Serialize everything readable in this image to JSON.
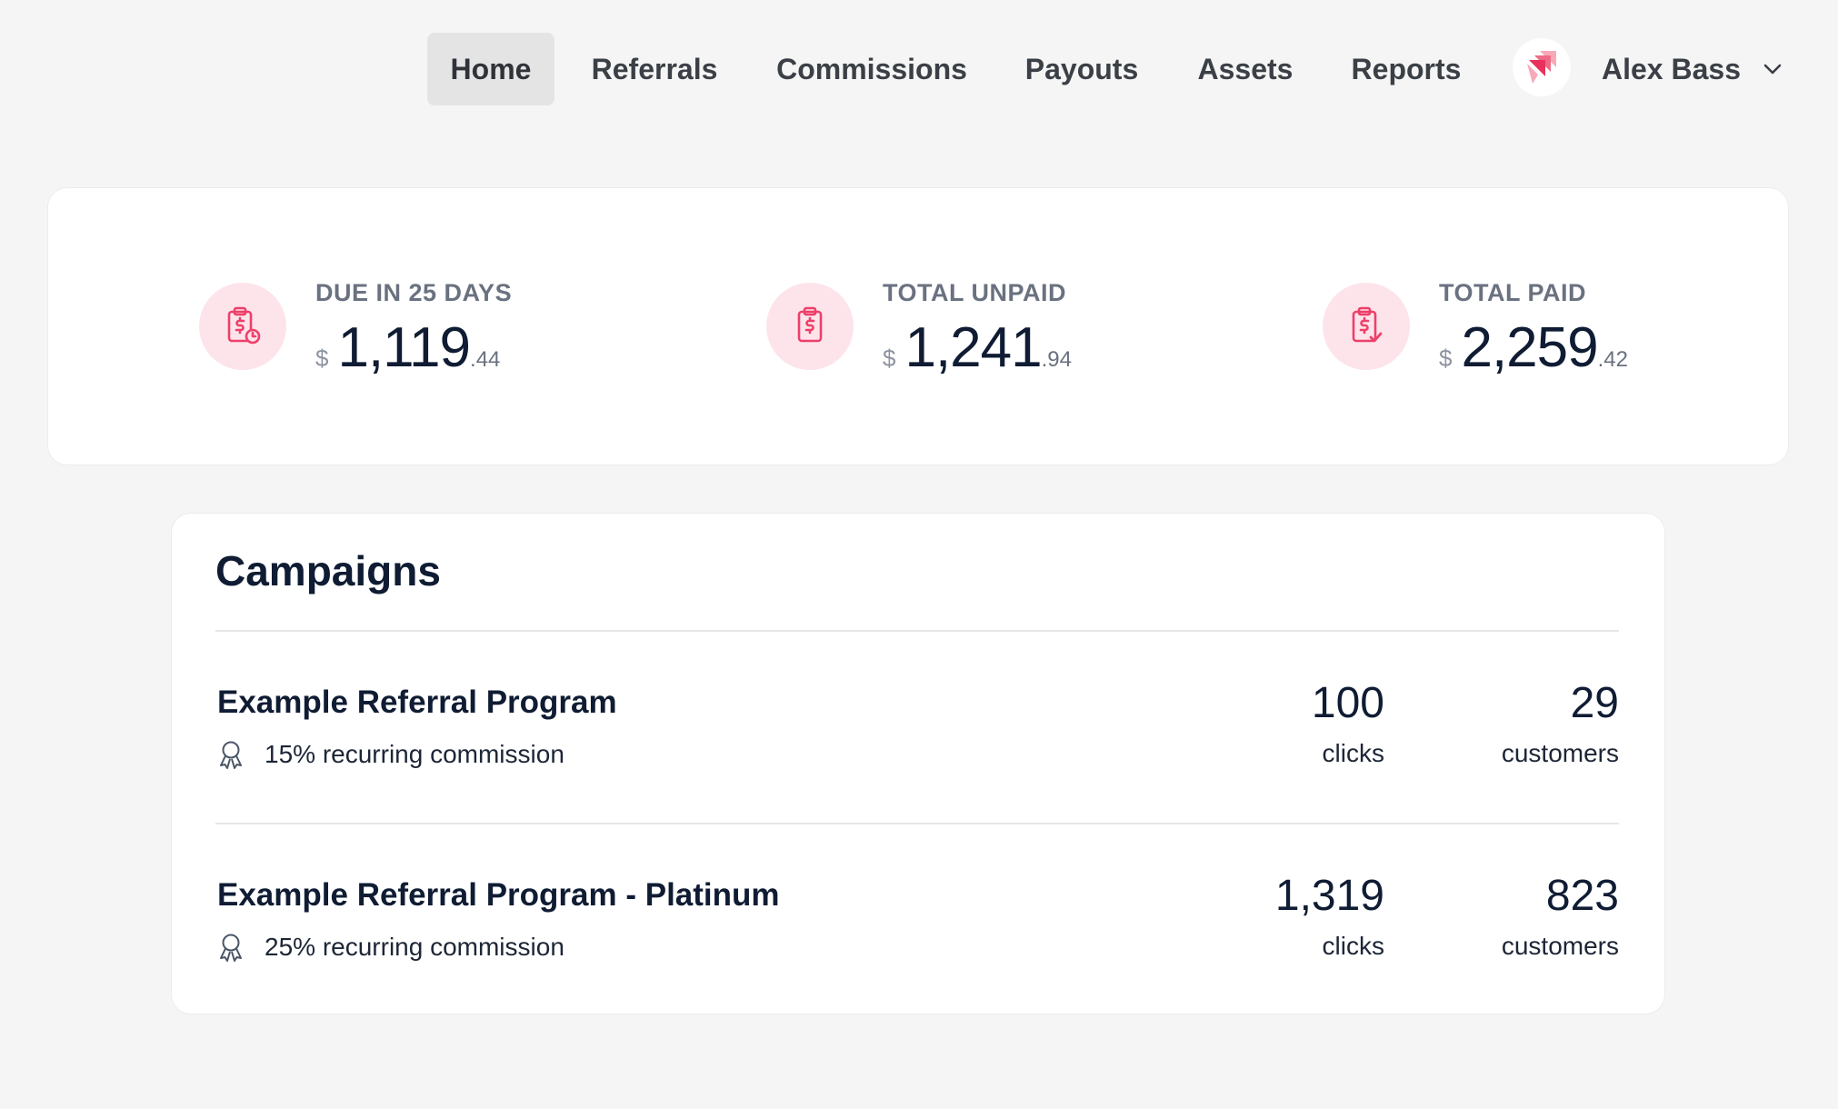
{
  "nav": {
    "items": [
      {
        "label": "Home",
        "active": true
      },
      {
        "label": "Referrals",
        "active": false
      },
      {
        "label": "Commissions",
        "active": false
      },
      {
        "label": "Payouts",
        "active": false
      },
      {
        "label": "Assets",
        "active": false
      },
      {
        "label": "Reports",
        "active": false
      }
    ],
    "user": {
      "name": "Alex Bass",
      "avatar_icon": "stacked-cards-logo-icon"
    }
  },
  "stats": [
    {
      "label": "DUE IN 25 DAYS",
      "currency": "$",
      "integer": "1,119",
      "cents": ".44",
      "icon": "clipboard-dollar-clock-icon"
    },
    {
      "label": "TOTAL UNPAID",
      "currency": "$",
      "integer": "1,241",
      "cents": ".94",
      "icon": "clipboard-dollar-icon"
    },
    {
      "label": "TOTAL PAID",
      "currency": "$",
      "integer": "2,259",
      "cents": ".42",
      "icon": "clipboard-dollar-check-icon"
    }
  ],
  "campaigns": {
    "title": "Campaigns",
    "rows": [
      {
        "name": "Example Referral Program",
        "commission": "15% recurring commission",
        "clicks": "100",
        "clicks_label": "clicks",
        "customers": "29",
        "customers_label": "customers"
      },
      {
        "name": "Example Referral Program - Platinum",
        "commission": "25% recurring commission",
        "clicks": "1,319",
        "clicks_label": "clicks",
        "customers": "823",
        "customers_label": "customers"
      }
    ]
  },
  "colors": {
    "accent": "#ee3f6a",
    "accent_bg": "#fde4ea",
    "page_bg": "#f4f5f4",
    "text_dark": "#0f1c33",
    "text_muted": "#6a7180"
  }
}
